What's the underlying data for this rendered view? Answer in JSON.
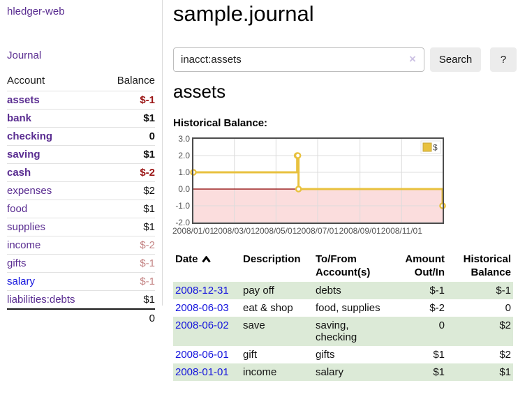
{
  "app": {
    "title": "hledger-web"
  },
  "sidebar": {
    "journal_link": "Journal",
    "table": {
      "headers": [
        "Account",
        "Balance"
      ],
      "rows": [
        {
          "account": "assets",
          "balance": "$-1"
        },
        {
          "account": "bank",
          "balance": "$1"
        },
        {
          "account": "checking",
          "balance": "0"
        },
        {
          "account": "saving",
          "balance": "$1"
        },
        {
          "account": "cash",
          "balance": "$-2"
        },
        {
          "account": "expenses",
          "balance": "$2"
        },
        {
          "account": "food",
          "balance": "$1"
        },
        {
          "account": "supplies",
          "balance": "$1"
        },
        {
          "account": "income",
          "balance": "$-2"
        },
        {
          "account": "gifts",
          "balance": "$-1"
        },
        {
          "account": "salary",
          "balance": "$-1"
        },
        {
          "account": "liabilities:debts",
          "balance": "$1"
        }
      ],
      "total": "0"
    }
  },
  "header": {
    "title": "sample.journal"
  },
  "search": {
    "value": "inacct:assets",
    "clear_icon": "×",
    "button_label": "Search",
    "help_label": "?"
  },
  "main": {
    "heading": "assets",
    "chart_label": "Historical Balance:"
  },
  "chart_data": {
    "type": "line",
    "title": "Historical Balance",
    "series": [
      {
        "name": "$",
        "color": "#e8c13e",
        "step": true,
        "points": [
          [
            "2008-01-01",
            1
          ],
          [
            "2008-06-01",
            2
          ],
          [
            "2008-06-02",
            2
          ],
          [
            "2008-06-03",
            0
          ],
          [
            "2008-12-31",
            -1
          ]
        ]
      }
    ],
    "xlim": [
      "2008-01-01",
      "2008-12-31"
    ],
    "ylim": [
      -2,
      3
    ],
    "y_ticks": [
      "3.0",
      "2.0",
      "1.0",
      "0.0",
      "-1.0",
      "-2.0"
    ],
    "x_ticks": [
      "2008/01/01",
      "2008/03/01",
      "2008/05/01",
      "2008/07/01",
      "2008/09/01",
      "2008/11/01"
    ],
    "grid": true,
    "legend_position": "top-right",
    "legend": {
      "label": "$"
    },
    "colors": {
      "negative_region": "#fbdddd",
      "zero_line": "#8b0000",
      "grid": "#dcdcdc",
      "border": "#4d4d4d"
    }
  },
  "register": {
    "headers": {
      "date": "Date",
      "description": "Description",
      "to_from": "To/From\nAccount(s)",
      "amount": "Amount\nOut/In",
      "balance": "Historical\nBalance"
    },
    "rows": [
      {
        "date": "2008-12-31",
        "description": "pay off",
        "to_from": "debts",
        "amount": "$-1",
        "balance": "$-1"
      },
      {
        "date": "2008-06-03",
        "description": "eat & shop",
        "to_from": "food, supplies",
        "amount": "$-2",
        "balance": "0"
      },
      {
        "date": "2008-06-02",
        "description": "save",
        "to_from": "saving,\nchecking",
        "amount": "0",
        "balance": "$2"
      },
      {
        "date": "2008-06-01",
        "description": "gift",
        "to_from": "gifts",
        "amount": "$1",
        "balance": "$2"
      },
      {
        "date": "2008-01-01",
        "description": "income",
        "to_from": "salary",
        "amount": "$1",
        "balance": "$1"
      }
    ]
  }
}
